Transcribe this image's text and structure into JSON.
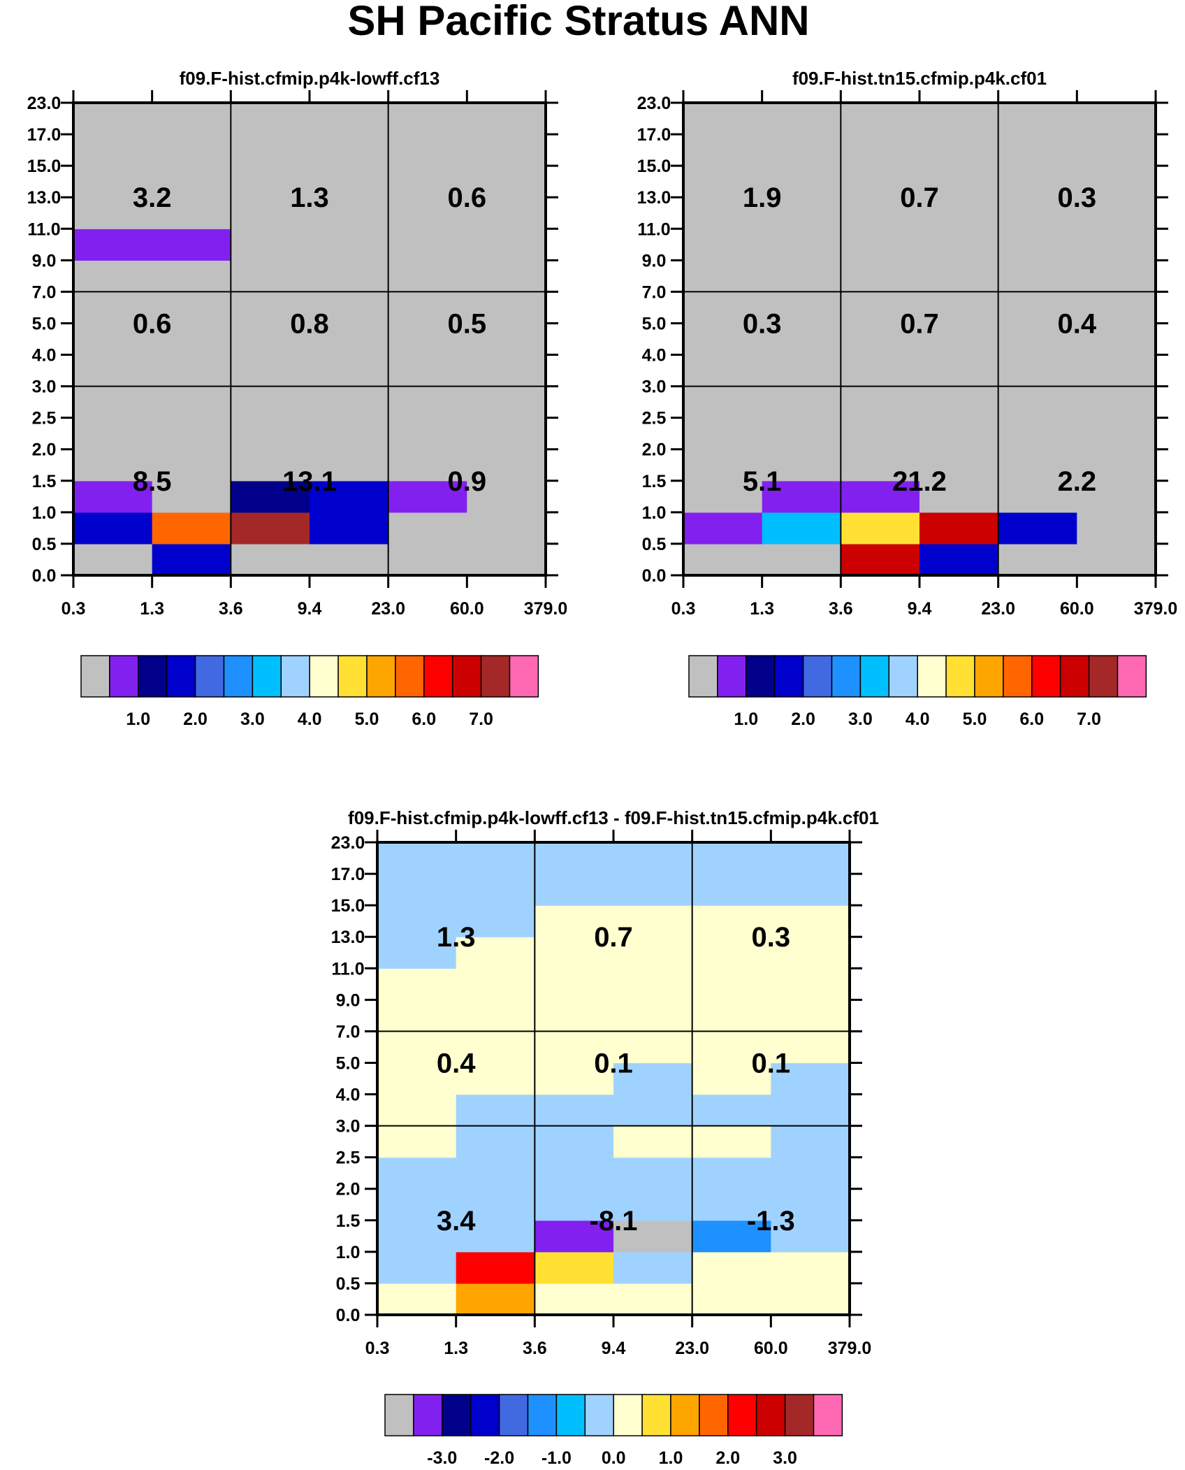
{
  "title": "SH Pacific Stratus ANN",
  "colors": {
    "palette": [
      "#c0c0c0",
      "#8220f0",
      "#00008b",
      "#0000cd",
      "#4169e1",
      "#1e90ff",
      "#00bfff",
      "#a0d2ff",
      "#ffffd0",
      "#ffe033",
      "#ffa500",
      "#ff6600",
      "#ff0000",
      "#cd0000",
      "#a52828",
      "#ff69b4"
    ],
    "grid_line": "#000000",
    "text": "#000000"
  },
  "chart_data": [
    {
      "type": "heatmap",
      "title": "f09.F-hist.cfmip.p4k-lowff.cf13",
      "x_tick_labels": [
        "0.3",
        "1.3",
        "3.6",
        "9.4",
        "23.0",
        "60.0",
        "379.0"
      ],
      "y_tick_labels": [
        "0.0",
        "0.5",
        "1.0",
        "1.5",
        "2.0",
        "2.5",
        "3.0",
        "4.0",
        "5.0",
        "7.0",
        "9.0",
        "11.0",
        "13.0",
        "15.0",
        "17.0",
        "23.0"
      ],
      "cells": [
        [
          0,
          3,
          1,
          0,
          0,
          0,
          0,
          0,
          0,
          0,
          1,
          0,
          0,
          0,
          0
        ],
        [
          3,
          11,
          0,
          0,
          0,
          0,
          0,
          0,
          0,
          0,
          1,
          0,
          0,
          0,
          0
        ],
        [
          0,
          14,
          2,
          0,
          0,
          0,
          0,
          0,
          0,
          0,
          0,
          0,
          0,
          0,
          0
        ],
        [
          0,
          3,
          3,
          0,
          0,
          0,
          0,
          0,
          0,
          0,
          0,
          0,
          0,
          0,
          0
        ],
        [
          0,
          0,
          1,
          0,
          0,
          0,
          0,
          0,
          0,
          0,
          0,
          0,
          0,
          0,
          0
        ],
        [
          0,
          0,
          0,
          0,
          0,
          0,
          0,
          0,
          0,
          0,
          0,
          0,
          0,
          0,
          0
        ]
      ],
      "region_values": [
        {
          "x_center": "1.3",
          "y_center": "1.5",
          "text": "8.5"
        },
        {
          "x_center": "9.4",
          "y_center": "1.5",
          "text": "13.1"
        },
        {
          "x_center": "60.0",
          "y_center": "1.5",
          "text": "0.9"
        },
        {
          "x_center": "1.3",
          "y_center": "5.0",
          "text": "0.6"
        },
        {
          "x_center": "9.4",
          "y_center": "5.0",
          "text": "0.8"
        },
        {
          "x_center": "60.0",
          "y_center": "5.0",
          "text": "0.5"
        },
        {
          "x_center": "1.3",
          "y_center": "13.0",
          "text": "3.2"
        },
        {
          "x_center": "9.4",
          "y_center": "13.0",
          "text": "1.3"
        },
        {
          "x_center": "60.0",
          "y_center": "13.0",
          "text": "0.6"
        }
      ],
      "colorbar": {
        "labels": [
          "1.0",
          "2.0",
          "3.0",
          "4.0",
          "5.0",
          "6.0",
          "7.0"
        ],
        "label_after_box": [
          1,
          3,
          5,
          7,
          9,
          11,
          13
        ]
      }
    },
    {
      "type": "heatmap",
      "title": "f09.F-hist.tn15.cfmip.p4k.cf01",
      "x_tick_labels": [
        "0.3",
        "1.3",
        "3.6",
        "9.4",
        "23.0",
        "60.0",
        "379.0"
      ],
      "y_tick_labels": [
        "0.0",
        "0.5",
        "1.0",
        "1.5",
        "2.0",
        "2.5",
        "3.0",
        "4.0",
        "5.0",
        "7.0",
        "9.0",
        "11.0",
        "13.0",
        "15.0",
        "17.0",
        "23.0"
      ],
      "cells": [
        [
          0,
          1,
          0,
          0,
          0,
          0,
          0,
          0,
          0,
          0,
          0,
          0,
          0,
          0,
          0
        ],
        [
          0,
          6,
          1,
          0,
          0,
          0,
          0,
          0,
          0,
          0,
          0,
          0,
          0,
          0,
          0
        ],
        [
          13,
          9,
          1,
          0,
          0,
          0,
          0,
          0,
          0,
          0,
          0,
          0,
          0,
          0,
          0
        ],
        [
          3,
          13,
          0,
          0,
          0,
          0,
          0,
          0,
          0,
          0,
          0,
          0,
          0,
          0,
          0
        ],
        [
          0,
          3,
          0,
          0,
          0,
          0,
          0,
          0,
          0,
          0,
          0,
          0,
          0,
          0,
          0
        ],
        [
          0,
          0,
          0,
          0,
          0,
          0,
          0,
          0,
          0,
          0,
          0,
          0,
          0,
          0,
          0
        ]
      ],
      "region_values": [
        {
          "x_center": "1.3",
          "y_center": "1.5",
          "text": "5.1"
        },
        {
          "x_center": "9.4",
          "y_center": "1.5",
          "text": "21.2"
        },
        {
          "x_center": "60.0",
          "y_center": "1.5",
          "text": "2.2"
        },
        {
          "x_center": "1.3",
          "y_center": "5.0",
          "text": "0.3"
        },
        {
          "x_center": "9.4",
          "y_center": "5.0",
          "text": "0.7"
        },
        {
          "x_center": "60.0",
          "y_center": "5.0",
          "text": "0.4"
        },
        {
          "x_center": "1.3",
          "y_center": "13.0",
          "text": "1.9"
        },
        {
          "x_center": "9.4",
          "y_center": "13.0",
          "text": "0.7"
        },
        {
          "x_center": "60.0",
          "y_center": "13.0",
          "text": "0.3"
        }
      ],
      "colorbar": {
        "labels": [
          "1.0",
          "2.0",
          "3.0",
          "4.0",
          "5.0",
          "6.0",
          "7.0"
        ],
        "label_after_box": [
          1,
          3,
          5,
          7,
          9,
          11,
          13
        ]
      }
    },
    {
      "type": "heatmap",
      "title": "f09.F-hist.cfmip.p4k-lowff.cf13 - f09.F-hist.tn15.cfmip.p4k.cf01",
      "x_tick_labels": [
        "0.3",
        "1.3",
        "3.6",
        "9.4",
        "23.0",
        "60.0",
        "379.0"
      ],
      "y_tick_labels": [
        "0.0",
        "0.5",
        "1.0",
        "1.5",
        "2.0",
        "2.5",
        "3.0",
        "4.0",
        "5.0",
        "7.0",
        "9.0",
        "11.0",
        "13.0",
        "15.0",
        "17.0",
        "23.0"
      ],
      "cells": [
        [
          8,
          7,
          7,
          7,
          7,
          8,
          8,
          8,
          8,
          8,
          8,
          7,
          7,
          7,
          7
        ],
        [
          10,
          12,
          7,
          7,
          7,
          7,
          7,
          8,
          8,
          8,
          8,
          8,
          7,
          7,
          7
        ],
        [
          8,
          9,
          1,
          7,
          7,
          7,
          7,
          8,
          8,
          8,
          8,
          8,
          8,
          7,
          7
        ],
        [
          8,
          7,
          0,
          7,
          7,
          8,
          7,
          7,
          8,
          8,
          8,
          8,
          8,
          7,
          7
        ],
        [
          8,
          8,
          5,
          7,
          7,
          8,
          7,
          8,
          8,
          8,
          8,
          8,
          8,
          7,
          7
        ],
        [
          8,
          8,
          7,
          7,
          7,
          7,
          7,
          7,
          8,
          8,
          8,
          8,
          8,
          7,
          7
        ]
      ],
      "region_values": [
        {
          "x_center": "1.3",
          "y_center": "1.5",
          "text": "3.4"
        },
        {
          "x_center": "9.4",
          "y_center": "1.5",
          "text": "-8.1"
        },
        {
          "x_center": "60.0",
          "y_center": "1.5",
          "text": "-1.3"
        },
        {
          "x_center": "1.3",
          "y_center": "5.0",
          "text": "0.4"
        },
        {
          "x_center": "9.4",
          "y_center": "5.0",
          "text": "0.1"
        },
        {
          "x_center": "60.0",
          "y_center": "5.0",
          "text": "0.1"
        },
        {
          "x_center": "1.3",
          "y_center": "13.0",
          "text": "1.3"
        },
        {
          "x_center": "9.4",
          "y_center": "13.0",
          "text": "0.7"
        },
        {
          "x_center": "60.0",
          "y_center": "13.0",
          "text": "0.3"
        }
      ],
      "colorbar": {
        "labels": [
          "-3.0",
          "-2.0",
          "-1.0",
          "0.0",
          "1.0",
          "2.0",
          "3.0"
        ],
        "label_after_box": [
          1,
          3,
          5,
          7,
          9,
          11,
          13
        ]
      }
    }
  ]
}
